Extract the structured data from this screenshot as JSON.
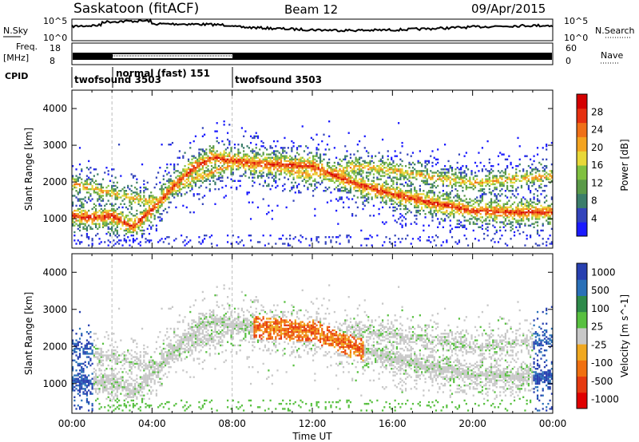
{
  "header": {
    "station": "Saskatoon (fitACF)",
    "beam": "Beam 12",
    "date": "09/Apr/2015"
  },
  "strip_labels": {
    "nsky": "N.Sky",
    "nsearch": "N.Search",
    "freq_line1": "Freq.",
    "freq_line2": "[MHz]",
    "nave": "Nave",
    "cpid": "CPID",
    "nsky_ticks": [
      "10^5",
      "10^0"
    ],
    "nsearch_ticks": [
      "10^5",
      "10^0"
    ],
    "freq_ticks": [
      "18",
      "8"
    ],
    "nave_ticks": [
      "60",
      "0"
    ]
  },
  "cpid_segments": [
    {
      "label": "twofsound 3503",
      "start_hour": 0
    },
    {
      "label": "normal (fast) 151",
      "start_hour": 2
    },
    {
      "label": "twofsound 3503",
      "start_hour": 8
    }
  ],
  "chart_data": [
    {
      "type": "heatmap",
      "panel": "power",
      "ylabel": "Slant Range [km]",
      "xlabel": "",
      "y_ticks": [
        1000,
        2000,
        3000,
        4000
      ],
      "ylim": [
        200,
        4500
      ],
      "xlim_hours": [
        0,
        24
      ],
      "colorbar": {
        "label": "Power [dB]",
        "ticks": [
          "4",
          "8",
          "12",
          "16",
          "20",
          "24",
          "28"
        ],
        "colors": [
          "#1a1aff",
          "#3344bb",
          "#3b7d6a",
          "#5a9a48",
          "#80c040",
          "#e8d838",
          "#f4a420",
          "#f07018",
          "#e63010",
          "#d40000"
        ]
      },
      "bands": [
        {
          "name": "near",
          "points": [
            [
              0,
              1100
            ],
            [
              1,
              1050
            ],
            [
              2,
              1100
            ],
            [
              3,
              800
            ],
            [
              4,
              1300
            ],
            [
              5,
              1900
            ],
            [
              6,
              2400
            ],
            [
              7,
              2700
            ],
            [
              8,
              2600
            ],
            [
              10,
              2500
            ],
            [
              12,
              2450
            ],
            [
              14,
              2000
            ],
            [
              16,
              1700
            ],
            [
              18,
              1450
            ],
            [
              20,
              1250
            ],
            [
              22,
              1200
            ],
            [
              24,
              1200
            ]
          ]
        },
        {
          "name": "far",
          "points": [
            [
              0,
              2000
            ],
            [
              2,
              1700
            ],
            [
              4,
              1500
            ],
            [
              6,
              2100
            ],
            [
              8,
              2500
            ],
            [
              10,
              2400
            ],
            [
              12,
              2200
            ],
            [
              14,
              2450
            ],
            [
              16,
              2350
            ],
            [
              18,
              2150
            ],
            [
              20,
              2000
            ],
            [
              22,
              2100
            ],
            [
              24,
              2200
            ]
          ]
        }
      ]
    },
    {
      "type": "heatmap",
      "panel": "velocity",
      "ylabel": "Slant Range [km]",
      "xlabel": "Time UT",
      "x_ticks": [
        "00:00",
        "04:00",
        "08:00",
        "12:00",
        "16:00",
        "20:00",
        "00:00"
      ],
      "y_ticks": [
        1000,
        2000,
        3000,
        4000
      ],
      "ylim": [
        200,
        4500
      ],
      "xlim_hours": [
        0,
        24
      ],
      "colorbar": {
        "label": "Velocity [m s^-1]",
        "ticks": [
          "1000",
          "500",
          "100",
          "25",
          "-25",
          "-100",
          "-500",
          "-1000"
        ],
        "colors": [
          "#2840b0",
          "#2a70b8",
          "#2e8a4a",
          "#58c040",
          "#c8c8c8",
          "#f0a820",
          "#f07010",
          "#e63a10",
          "#e00000"
        ]
      }
    }
  ]
}
